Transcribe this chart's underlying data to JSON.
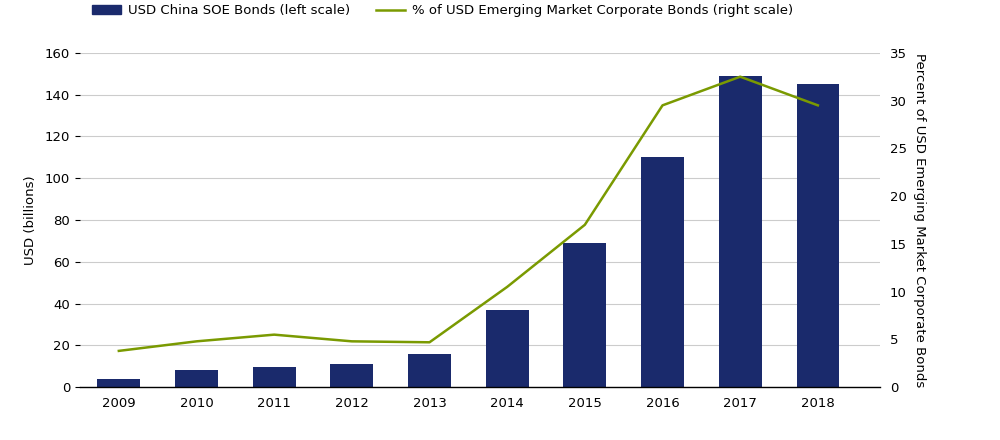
{
  "years": [
    2009,
    2010,
    2011,
    2012,
    2013,
    2014,
    2015,
    2016,
    2017,
    2018
  ],
  "bar_values": [
    4,
    8,
    9.5,
    11,
    16,
    37,
    69,
    110,
    149,
    145
  ],
  "line_values": [
    3.8,
    4.8,
    5.5,
    4.8,
    4.7,
    10.5,
    17.0,
    29.5,
    32.5,
    29.5
  ],
  "bar_color": "#1a2a6c",
  "line_color": "#7a9a01",
  "left_ylim": [
    0,
    160
  ],
  "right_ylim": [
    0,
    35
  ],
  "left_yticks": [
    0,
    20,
    40,
    60,
    80,
    100,
    120,
    140,
    160
  ],
  "right_yticks": [
    0,
    5,
    10,
    15,
    20,
    25,
    30,
    35
  ],
  "left_ylabel": "USD (billions)",
  "right_ylabel": "Percent of USD Emerging Market Corporate Bonds",
  "bar_legend_label": "USD China SOE Bonds (left scale)",
  "line_legend_label": "% of USD Emerging Market Corporate Bonds (right scale)",
  "background_color": "#ffffff",
  "grid_color": "#cccccc",
  "bar_width": 0.55,
  "line_width": 1.8,
  "xlim": [
    2008.5,
    2018.8
  ],
  "legend_fontsize": 9.5,
  "tick_fontsize": 9.5,
  "ylabel_fontsize": 9.5
}
